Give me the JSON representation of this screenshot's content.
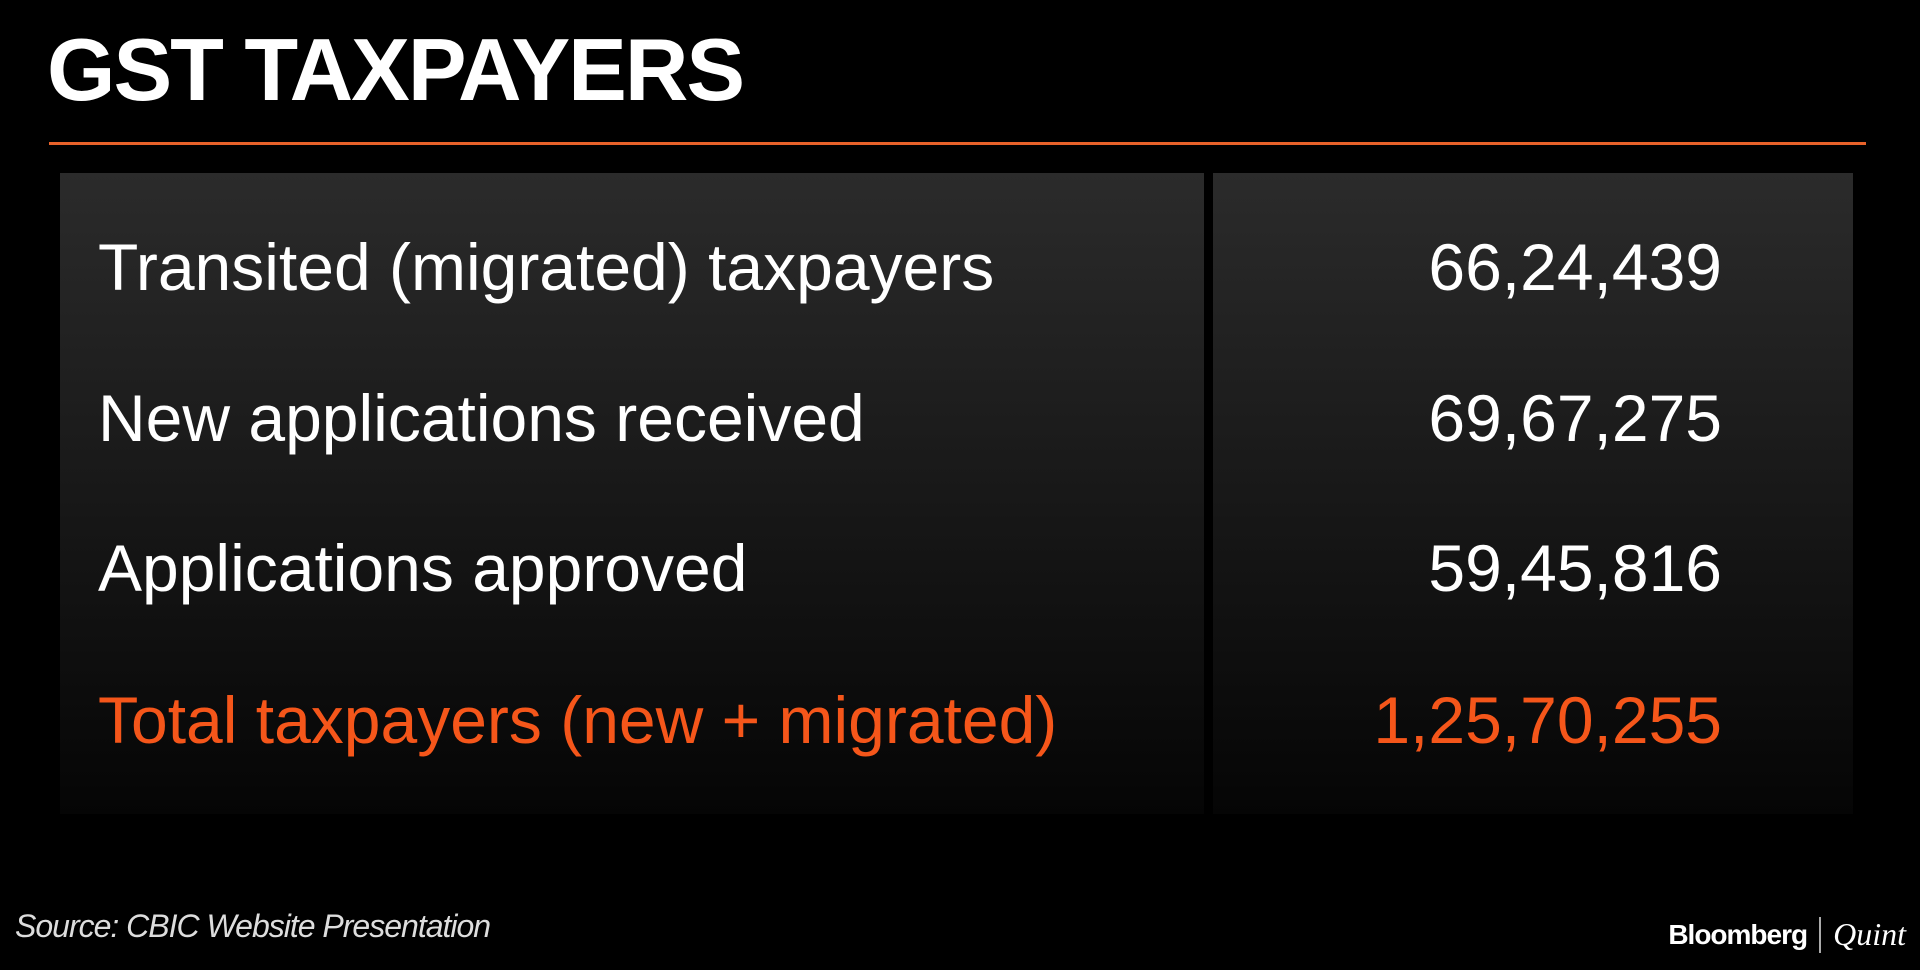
{
  "header": {
    "title": "GST TAXPAYERS"
  },
  "table": {
    "rows": [
      [
        "Transited (migrated) taxpayers",
        "66,24,439"
      ],
      [
        "New applications received",
        "69,67,275"
      ],
      [
        "Applications approved",
        "59,45,816"
      ],
      [
        "Total taxpayers (new + migrated)",
        "1,25,70,255"
      ]
    ]
  },
  "footer": {
    "source": "Source: CBIC Website Presentation",
    "brand": "Bloomberg",
    "brand_suffix": "Quint"
  }
}
